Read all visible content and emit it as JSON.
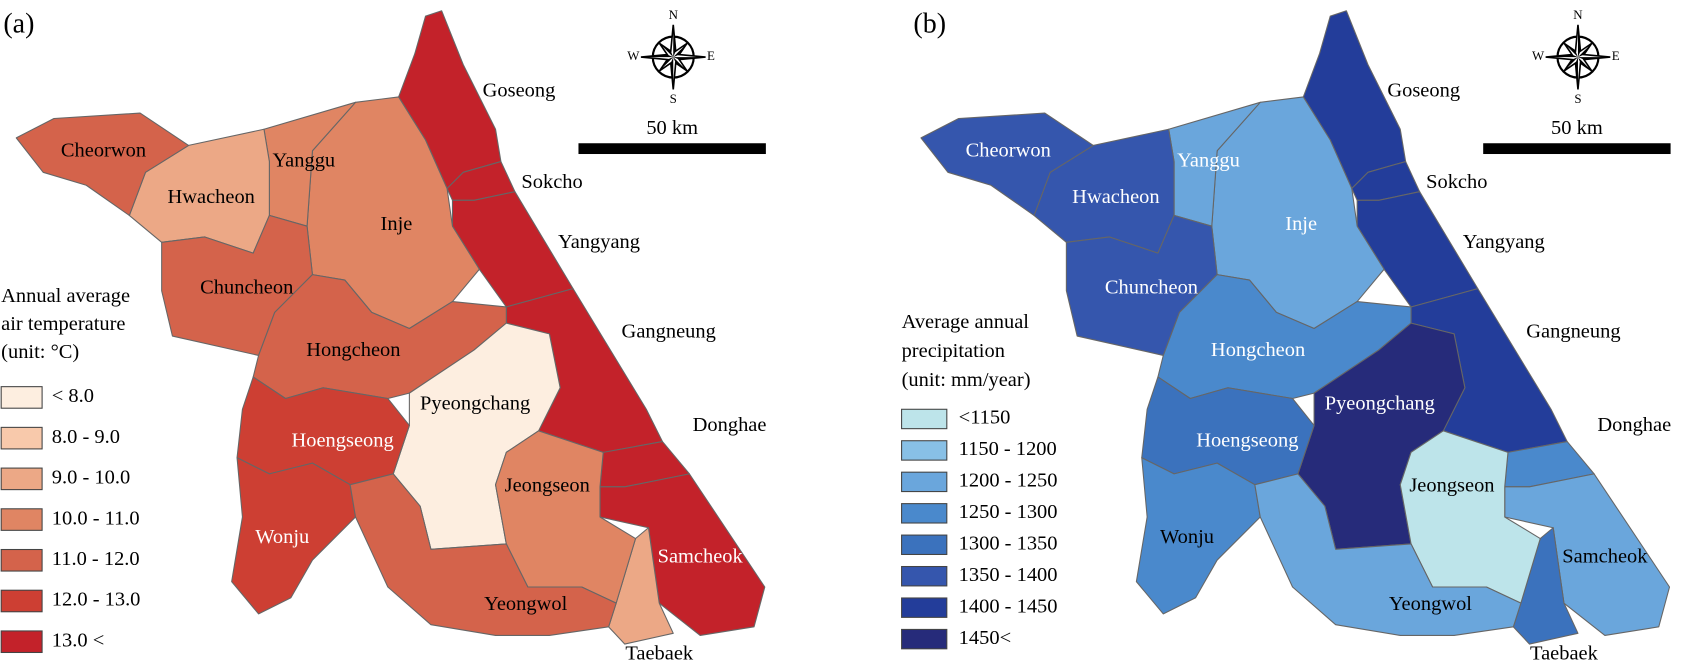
{
  "panels": [
    {
      "label": "(a)",
      "legend": {
        "title": [
          "Annual average",
          "air temperature",
          "(unit: °C)"
        ],
        "items": [
          {
            "label": "< 8.0",
            "color": "#fdeee0"
          },
          {
            "label": "8.0 - 9.0",
            "color": "#f8c9ab"
          },
          {
            "label": "9.0 - 10.0",
            "color": "#eca886"
          },
          {
            "label": "10.0 - 11.0",
            "color": "#e08563"
          },
          {
            "label": "11.0 - 12.0",
            "color": "#d4634b"
          },
          {
            "label": "12.0 - 13.0",
            "color": "#cd3f33"
          },
          {
            "label": "13.0 <",
            "color": "#c3222a"
          }
        ]
      },
      "regions": [
        {
          "name": "Goseong",
          "color": "#c3222a",
          "label_color": "#000000"
        },
        {
          "name": "Sokcho",
          "color": "#c3222a",
          "label_color": "#000000"
        },
        {
          "name": "Yangyang",
          "color": "#c3222a",
          "label_color": "#000000"
        },
        {
          "name": "Gangneung",
          "color": "#c3222a",
          "label_color": "#000000"
        },
        {
          "name": "Donghae",
          "color": "#c3222a",
          "label_color": "#000000"
        },
        {
          "name": "Samcheok",
          "color": "#c3222a",
          "label_color": "#ffffff"
        },
        {
          "name": "Taebaek",
          "color": "#eca886",
          "label_color": "#000000"
        },
        {
          "name": "Inje",
          "color": "#e08563",
          "label_color": "#000000"
        },
        {
          "name": "Yanggu",
          "color": "#e08563",
          "label_color": "#000000"
        },
        {
          "name": "Hwacheon",
          "color": "#eca886",
          "label_color": "#000000"
        },
        {
          "name": "Cheorwon",
          "color": "#d4634b",
          "label_color": "#000000"
        },
        {
          "name": "Chuncheon",
          "color": "#d4634b",
          "label_color": "#000000"
        },
        {
          "name": "Hongcheon",
          "color": "#d4634b",
          "label_color": "#000000"
        },
        {
          "name": "Pyeongchang",
          "color": "#fdeee0",
          "label_color": "#000000"
        },
        {
          "name": "Hoengseong",
          "color": "#cd3f33",
          "label_color": "#ffffff"
        },
        {
          "name": "Wonju",
          "color": "#cd3f33",
          "label_color": "#ffffff"
        },
        {
          "name": "Jeongseon",
          "color": "#e08563",
          "label_color": "#000000"
        },
        {
          "name": "Yeongwol",
          "color": "#d4634b",
          "label_color": "#000000"
        }
      ],
      "compass": {
        "n": "N",
        "s": "S",
        "e": "E",
        "w": "W"
      },
      "scale_bar": "50 km"
    },
    {
      "label": "(b)",
      "legend": {
        "title": [
          "Average annual",
          "precipitation",
          "(unit: mm/year)"
        ],
        "items": [
          {
            "label": "<1150",
            "color": "#bde4ea"
          },
          {
            "label": "1150 - 1200",
            "color": "#88c0e6"
          },
          {
            "label": "1200 - 1250",
            "color": "#6aa6dc"
          },
          {
            "label": "1250 - 1300",
            "color": "#4a89cc"
          },
          {
            "label": "1300 - 1350",
            "color": "#3b72bd"
          },
          {
            "label": "1350 - 1400",
            "color": "#3556ad"
          },
          {
            "label": "1400 - 1450",
            "color": "#233d9a"
          },
          {
            "label": "1450<",
            "color": "#262b7a"
          }
        ]
      },
      "regions": [
        {
          "name": "Goseong",
          "color": "#233d9a",
          "label_color": "#000000"
        },
        {
          "name": "Sokcho",
          "color": "#233d9a",
          "label_color": "#000000"
        },
        {
          "name": "Yangyang",
          "color": "#233d9a",
          "label_color": "#000000"
        },
        {
          "name": "Gangneung",
          "color": "#233d9a",
          "label_color": "#000000"
        },
        {
          "name": "Donghae",
          "color": "#4a89cc",
          "label_color": "#000000"
        },
        {
          "name": "Samcheok",
          "color": "#6aa6dc",
          "label_color": "#000000"
        },
        {
          "name": "Taebaek",
          "color": "#3b72bd",
          "label_color": "#000000"
        },
        {
          "name": "Inje",
          "color": "#6aa6dc",
          "label_color": "#ffffff"
        },
        {
          "name": "Yanggu",
          "color": "#6aa6dc",
          "label_color": "#ffffff"
        },
        {
          "name": "Hwacheon",
          "color": "#3556ad",
          "label_color": "#ffffff"
        },
        {
          "name": "Cheorwon",
          "color": "#3556ad",
          "label_color": "#ffffff"
        },
        {
          "name": "Chuncheon",
          "color": "#3556ad",
          "label_color": "#ffffff"
        },
        {
          "name": "Hongcheon",
          "color": "#4a89cc",
          "label_color": "#ffffff"
        },
        {
          "name": "Pyeongchang",
          "color": "#262b7a",
          "label_color": "#ffffff"
        },
        {
          "name": "Hoengseong",
          "color": "#3b72bd",
          "label_color": "#ffffff"
        },
        {
          "name": "Wonju",
          "color": "#4a89cc",
          "label_color": "#000000"
        },
        {
          "name": "Jeongseon",
          "color": "#bde4ea",
          "label_color": "#000000"
        },
        {
          "name": "Yeongwol",
          "color": "#6aa6dc",
          "label_color": "#000000"
        }
      ],
      "compass": {
        "n": "N",
        "s": "S",
        "e": "E",
        "w": "W"
      },
      "scale_bar": "50 km"
    }
  ]
}
